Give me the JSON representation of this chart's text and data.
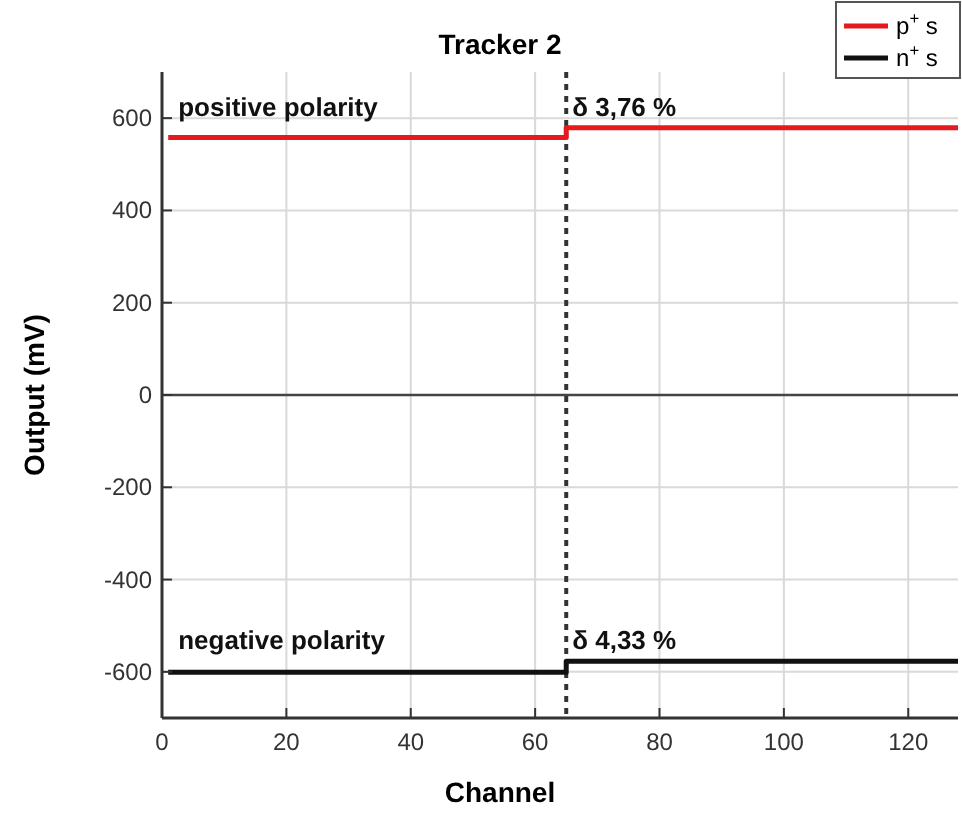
{
  "chart_data": {
    "type": "step",
    "title": "Tracker 2",
    "xlabel": "Channel",
    "ylabel": "Output (mV)",
    "xlim": [
      0,
      128
    ],
    "xticks": [
      0,
      20,
      40,
      60,
      80,
      100,
      120
    ],
    "ylim": [
      -700,
      700
    ],
    "yticks": [
      -600,
      -400,
      -200,
      0,
      200,
      400,
      600
    ],
    "series": [
      {
        "name": "p$^{+}$ s",
        "color": "#e41a1c",
        "x": [
          1,
          65,
          128
        ],
        "values": [
          558,
          579,
          579
        ]
      },
      {
        "name": "n$^{+}$ s",
        "color": "#111111",
        "x": [
          1,
          65,
          128
        ],
        "values": [
          -601,
          -577,
          -577
        ]
      }
    ],
    "ref_lines": [
      {
        "axis": "x",
        "value": 65,
        "line_style": "dotted",
        "color": "#333333"
      },
      {
        "axis": "y",
        "value": 0,
        "line_style": "solid",
        "color": "#444444"
      }
    ],
    "annotations": [
      "positive polarity",
      "δ 3,76 %",
      "negative polarity",
      "δ 4,33 %"
    ],
    "grid": true,
    "legend": "top right",
    "line_style": "solid"
  }
}
